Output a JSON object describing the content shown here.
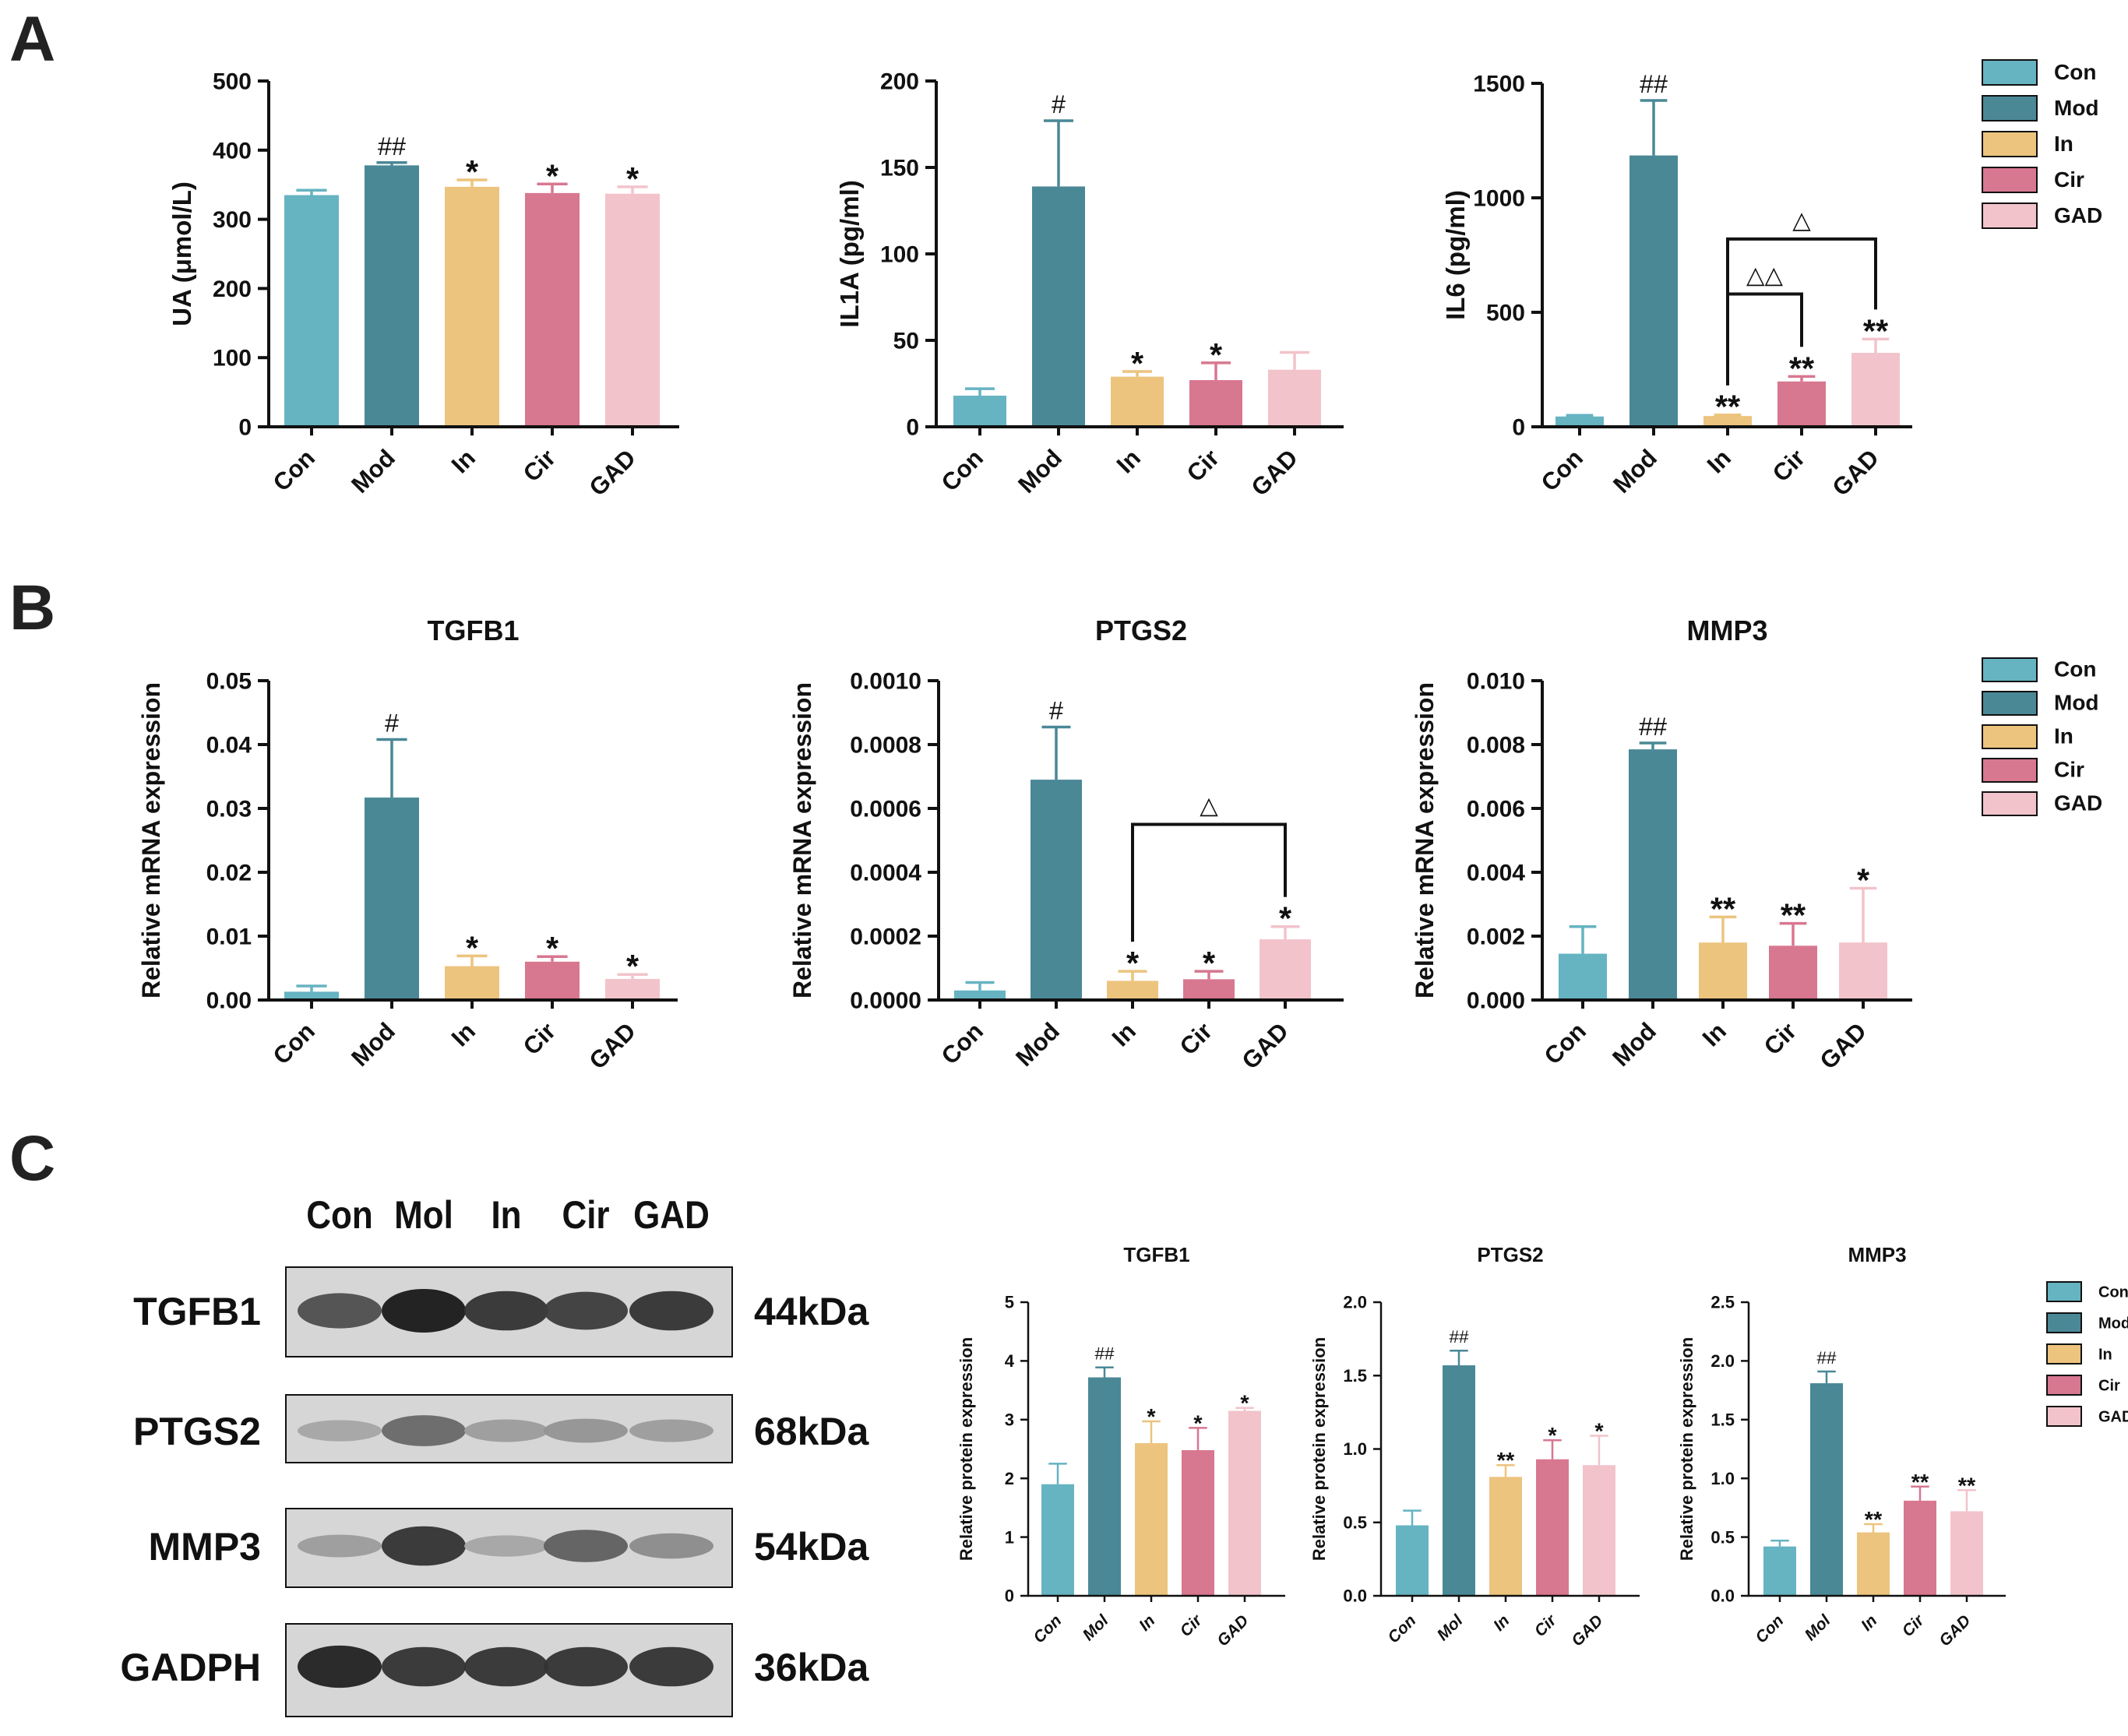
{
  "colors": {
    "Con": "#66b3c2",
    "Mod": "#4a8896",
    "In": "#ecc47e",
    "Cir": "#d87790",
    "GAD": "#f2c3cb"
  },
  "panel_labels": {
    "A": "A",
    "B": "B",
    "C": "C"
  },
  "legends": {
    "A": [
      "Con",
      "Mod",
      "In",
      "Cir",
      "GAD"
    ],
    "B": [
      "Con",
      "Mod",
      "In",
      "Cir",
      "GAD"
    ],
    "C": [
      "Con",
      "Mod",
      "In",
      "Cir",
      "GAD"
    ]
  },
  "western_blot": {
    "lanes": [
      "Con",
      "Mol",
      "In",
      "Cir",
      "GAD"
    ],
    "rows": [
      {
        "protein": "TGFB1",
        "size": "44kDa"
      },
      {
        "protein": "PTGS2",
        "size": "68kDa"
      },
      {
        "protein": "MMP3",
        "size": "54kDa"
      },
      {
        "protein": "GADPH",
        "size": "36kDa"
      }
    ],
    "band_intensity": [
      [
        0.7,
        1.0,
        0.85,
        0.8,
        0.85
      ],
      [
        0.2,
        0.55,
        0.25,
        0.3,
        0.25
      ],
      [
        0.25,
        0.85,
        0.2,
        0.6,
        0.35
      ],
      [
        0.95,
        0.85,
        0.85,
        0.85,
        0.85
      ]
    ]
  },
  "chart_data": [
    {
      "id": "A1",
      "type": "bar",
      "title": "",
      "xlabel": "",
      "ylabel": "UA (μmol/L)",
      "categories": [
        "Con",
        "Mod",
        "In",
        "Cir",
        "GAD"
      ],
      "values": [
        335,
        378,
        347,
        338,
        337
      ],
      "errors": [
        7,
        4,
        10,
        13,
        10
      ],
      "annotations": [
        "",
        "##",
        "*",
        "*",
        "*"
      ],
      "ylim": [
        0,
        500
      ],
      "yticks": [
        "0",
        "100",
        "200",
        "300",
        "400",
        "500"
      ],
      "brackets": []
    },
    {
      "id": "A2",
      "type": "bar",
      "title": "",
      "xlabel": "",
      "ylabel": "IL1A (pg/ml)",
      "categories": [
        "Con",
        "Mod",
        "In",
        "Cir",
        "GAD"
      ],
      "values": [
        18,
        139,
        29,
        27,
        33
      ],
      "errors": [
        4,
        38,
        3,
        10,
        10
      ],
      "annotations": [
        "",
        "#",
        "*",
        "*",
        ""
      ],
      "ylim": [
        0,
        200
      ],
      "yticks": [
        "0",
        "50",
        "100",
        "150",
        "200"
      ],
      "brackets": []
    },
    {
      "id": "A3",
      "type": "bar",
      "title": "",
      "xlabel": "",
      "ylabel": "IL6 (pg/ml)",
      "categories": [
        "Con",
        "Mod",
        "In",
        "Cir",
        "GAD"
      ],
      "values": [
        45,
        1185,
        47,
        198,
        323
      ],
      "errors": [
        5,
        240,
        5,
        22,
        60
      ],
      "annotations": [
        "",
        "##",
        "**",
        "**",
        "**"
      ],
      "ylim": [
        0,
        1500
      ],
      "yticks": [
        "0",
        "500",
        "1000",
        "1500"
      ],
      "brackets": [
        {
          "from": 2,
          "to": 4,
          "label": "△",
          "level": 820
        },
        {
          "from": 2,
          "to": 3,
          "label": "△△",
          "level": 580
        }
      ]
    },
    {
      "id": "B1",
      "type": "bar",
      "title": "TGFB1",
      "xlabel": "",
      "ylabel": "Relative mRNA expression",
      "categories": [
        "Con",
        "Mod",
        "In",
        "Cir",
        "GAD"
      ],
      "values": [
        0.0013,
        0.0317,
        0.0053,
        0.006,
        0.0033
      ],
      "errors": [
        0.0009,
        0.0091,
        0.0016,
        0.0008,
        0.0007
      ],
      "annotations": [
        "",
        "#",
        "*",
        "*",
        "*"
      ],
      "ylim": [
        0,
        0.05
      ],
      "yticks": [
        "0.00",
        "0.01",
        "0.02",
        "0.03",
        "0.04",
        "0.05"
      ],
      "brackets": []
    },
    {
      "id": "B2",
      "type": "bar",
      "title": "PTGS2",
      "xlabel": "",
      "ylabel": "Relative mRNA expression",
      "categories": [
        "Con",
        "Mod",
        "In",
        "Cir",
        "GAD"
      ],
      "values": [
        3e-05,
        0.00069,
        6e-05,
        6.5e-05,
        0.00019
      ],
      "errors": [
        2.5e-05,
        0.000165,
        3e-05,
        2.5e-05,
        4e-05
      ],
      "annotations": [
        "",
        "#",
        "*",
        "*",
        "*"
      ],
      "ylim": [
        0,
        0.001
      ],
      "yticks": [
        "0.0000",
        "0.0002",
        "0.0004",
        "0.0006",
        "0.0008",
        "0.0010"
      ],
      "brackets": [
        {
          "from": 2,
          "to": 4,
          "label": "△",
          "level": 0.00055
        }
      ]
    },
    {
      "id": "B3",
      "type": "bar",
      "title": "MMP3",
      "xlabel": "",
      "ylabel": "Relative mRNA expression",
      "categories": [
        "Con",
        "Mod",
        "In",
        "Cir",
        "GAD"
      ],
      "values": [
        0.00145,
        0.00785,
        0.0018,
        0.0017,
        0.0018
      ],
      "errors": [
        0.00085,
        0.0002,
        0.0008,
        0.0007,
        0.0017
      ],
      "annotations": [
        "",
        "##",
        "**",
        "**",
        "*"
      ],
      "ylim": [
        0,
        0.01
      ],
      "yticks": [
        "0.000",
        "0.002",
        "0.004",
        "0.006",
        "0.008",
        "0.010"
      ],
      "brackets": []
    },
    {
      "id": "C1",
      "type": "bar",
      "title": "TGFB1",
      "xlabel": "",
      "ylabel": "Relative protein expression",
      "categories": [
        "Con",
        "Mol",
        "In",
        "Cir",
        "GAD"
      ],
      "values": [
        1.9,
        3.72,
        2.6,
        2.48,
        3.15
      ],
      "errors": [
        0.35,
        0.17,
        0.37,
        0.38,
        0.05
      ],
      "annotations": [
        "",
        "##",
        "*",
        "*",
        "*"
      ],
      "ylim": [
        0,
        5
      ],
      "yticks": [
        "0",
        "1",
        "2",
        "3",
        "4",
        "5"
      ],
      "brackets": []
    },
    {
      "id": "C2",
      "type": "bar",
      "title": "PTGS2",
      "xlabel": "",
      "ylabel": "Relative protein expression",
      "categories": [
        "Con",
        "Mol",
        "In",
        "Cir",
        "GAD"
      ],
      "values": [
        0.48,
        1.57,
        0.81,
        0.93,
        0.89
      ],
      "errors": [
        0.1,
        0.1,
        0.08,
        0.13,
        0.2
      ],
      "annotations": [
        "",
        "##",
        "**",
        "*",
        "*"
      ],
      "ylim": [
        0,
        2.0
      ],
      "yticks": [
        "0.0",
        "0.5",
        "1.0",
        "1.5",
        "2.0"
      ],
      "brackets": []
    },
    {
      "id": "C3",
      "type": "bar",
      "title": "MMP3",
      "xlabel": "",
      "ylabel": "Relative protein expression",
      "categories": [
        "Con",
        "Mol",
        "In",
        "Cir",
        "GAD"
      ],
      "values": [
        0.42,
        1.81,
        0.54,
        0.81,
        0.72
      ],
      "errors": [
        0.05,
        0.1,
        0.07,
        0.12,
        0.18
      ],
      "annotations": [
        "",
        "##",
        "**",
        "**",
        "**"
      ],
      "ylim": [
        0,
        2.5
      ],
      "yticks": [
        "0.0",
        "0.5",
        "1.0",
        "1.5",
        "2.0",
        "2.5"
      ],
      "brackets": []
    }
  ]
}
